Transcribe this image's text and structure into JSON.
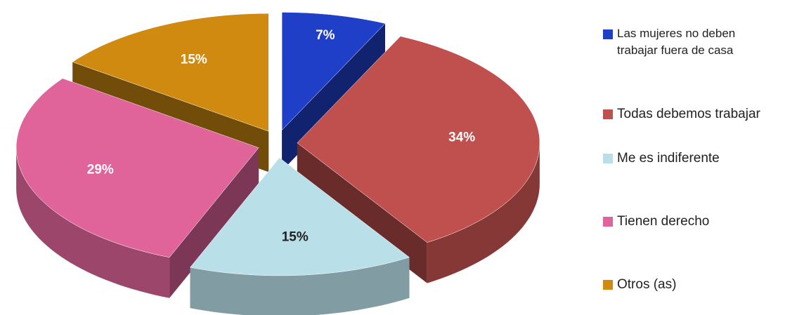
{
  "chart_data": {
    "type": "pie",
    "categories": [
      "Las mujeres no deben trabajar fuera de casa",
      "Todas debemos trabajar",
      "Me es indiferente",
      "Tienen derecho",
      "Otros (as)"
    ],
    "values": [
      7,
      34,
      15,
      29,
      15
    ],
    "value_labels": [
      "7%",
      "34%",
      "15%",
      "29%",
      "15%"
    ],
    "colors": [
      "#1f3fc8",
      "#c0504d",
      "#b9dfe9",
      "#e0649a",
      "#d08a10"
    ]
  }
}
